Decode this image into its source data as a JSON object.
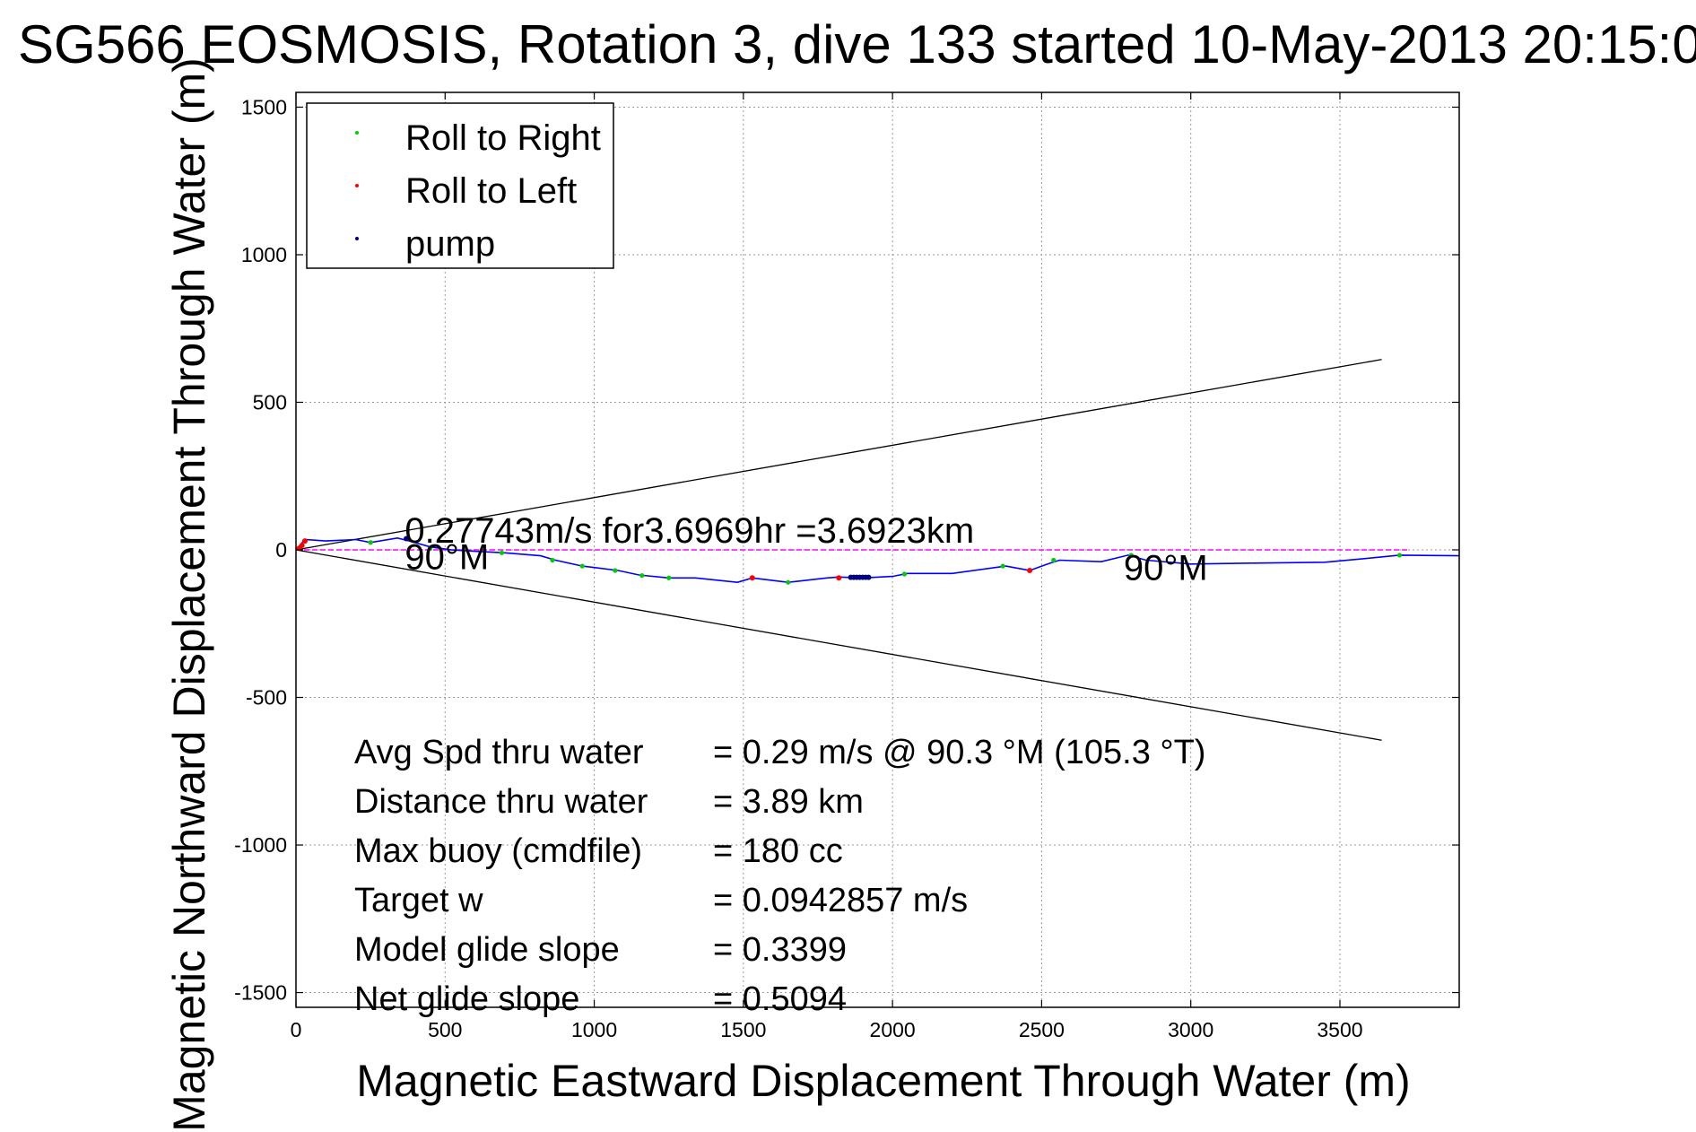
{
  "chart_data": {
    "type": "line",
    "title": "SG566 EOSMOSIS, Rotation 3, dive 133 started 10-May-2013 20:15:0",
    "xlabel": "Magnetic Eastward Displacement Through Water (m)",
    "ylabel": "Magnetic Northward Displacement Through Water (m)",
    "xlim": [
      0,
      3900
    ],
    "ylim": [
      -1550,
      1550
    ],
    "xticks": [
      0,
      500,
      1000,
      1500,
      2000,
      2500,
      3000,
      3500
    ],
    "xtick_labels": [
      "0",
      "500",
      "1000",
      "1500",
      "2000",
      "2500",
      "3000",
      "3500"
    ],
    "yticks": [
      1500,
      1000,
      500,
      0,
      -500,
      -1000,
      -1500
    ],
    "ytick_labels": [
      "1500",
      "1000",
      "500",
      "0",
      "-500",
      "-1000",
      "-1500"
    ],
    "grid": true,
    "legend_position": "top-left",
    "legend": [
      {
        "label": "Roll to Right",
        "color": "#00cc00"
      },
      {
        "label": "Roll to Left",
        "color": "#ff0000"
      },
      {
        "label": "pump",
        "color": "#000080"
      }
    ],
    "track": {
      "color": "#0000ff",
      "x": [
        0,
        30,
        100,
        200,
        250,
        340,
        380,
        450,
        520,
        600,
        700,
        820,
        870,
        960,
        1000,
        1080,
        1150,
        1250,
        1340,
        1480,
        1530,
        1650,
        1780,
        1820,
        1900,
        2000,
        2050,
        2200,
        2380,
        2460,
        2520,
        2560,
        2700,
        2790,
        2850,
        3000,
        3200,
        3450,
        3600,
        3700,
        3900
      ],
      "y": [
        0,
        35,
        30,
        35,
        25,
        40,
        30,
        10,
        0,
        -5,
        -10,
        -20,
        -35,
        -55,
        -60,
        -70,
        -85,
        -95,
        -95,
        -110,
        -95,
        -110,
        -95,
        -92,
        -95,
        -90,
        -80,
        -80,
        -55,
        -70,
        -48,
        -35,
        -40,
        -18,
        -35,
        -48,
        -45,
        -42,
        -28,
        -18,
        -20
      ]
    },
    "roll_right_points": {
      "color": "#00cc00",
      "x": [
        250,
        450,
        690,
        860,
        960,
        1070,
        1160,
        1250,
        1650,
        2040,
        2370,
        2540,
        2800,
        3700
      ],
      "y": [
        25,
        5,
        -10,
        -35,
        -55,
        -70,
        -87,
        -95,
        -110,
        -82,
        -55,
        -35,
        -18,
        -18
      ]
    },
    "roll_left_points": {
      "color": "#ff0000",
      "x": [
        10,
        20,
        30,
        1530,
        1820,
        2460
      ],
      "y": [
        5,
        15,
        30,
        -95,
        -95,
        -70
      ]
    },
    "pump_points": {
      "color": "#000080",
      "x": [
        1860,
        1870,
        1880,
        1890,
        1900,
        1910,
        1920,
        370
      ],
      "y": [
        -93,
        -93,
        -93,
        -93,
        -93,
        -93,
        -93,
        38
      ]
    },
    "heading_line": {
      "color": "#ff00ff",
      "x": [
        0,
        3730
      ],
      "y": [
        0,
        0
      ]
    },
    "cone_upper": {
      "color": "#000000",
      "x": [
        0,
        3640
      ],
      "y": [
        0,
        645
      ]
    },
    "cone_lower": {
      "color": "#000000",
      "x": [
        0,
        3640
      ],
      "y": [
        0,
        -645
      ]
    },
    "annotations": [
      {
        "text": "0.27743m/s for3.6969hr =3.6923km",
        "x": 365,
        "y": 30
      },
      {
        "text": "90°M",
        "x": 365,
        "y": -60
      },
      {
        "text": "90°M",
        "x": 2775,
        "y": -95
      }
    ],
    "stats": [
      {
        "label": "Avg Spd thru water",
        "value": "=  0.29 m/s @  90.3 °M (105.3 °T)"
      },
      {
        "label": "Distance thru water",
        "value": "=  3.89 km"
      },
      {
        "label": "Max buoy (cmdfile)",
        "value": "= 180 cc"
      },
      {
        "label": "Target w",
        "value": "= 0.0942857 m/s"
      },
      {
        "label": "Model glide slope",
        "value": "= 0.3399"
      },
      {
        "label": "Net glide slope",
        "value": "= 0.5094"
      }
    ]
  }
}
